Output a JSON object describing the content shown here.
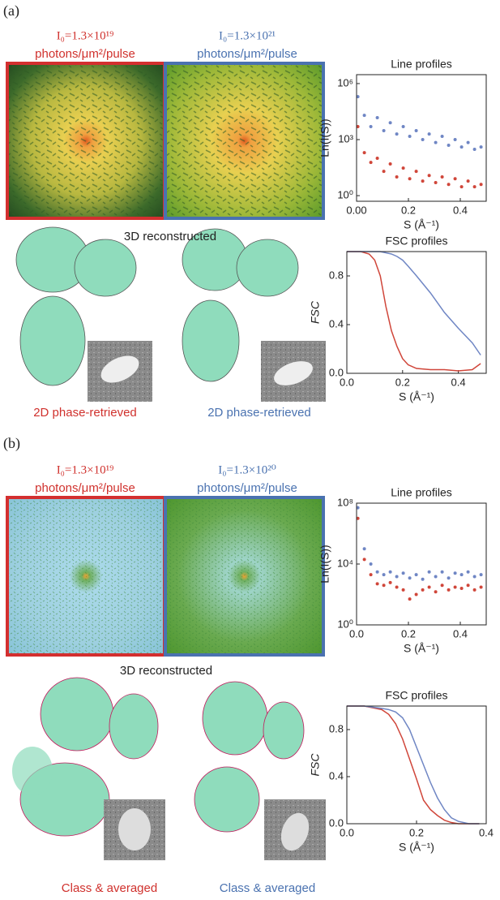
{
  "panels": [
    {
      "label": "(a)",
      "headings": [
        {
          "intensity": "I₀=1.3×10¹⁹",
          "unit": "photons/μm²/pulse"
        },
        {
          "intensity": "I₀=1.3×10²¹",
          "unit": "photons/μm²/pulse"
        }
      ],
      "reconstructed": "3D reconstructed",
      "captions": [
        "2D phase-retrieved",
        "2D phase-retrieved"
      ]
    },
    {
      "label": "(b)",
      "headings": [
        {
          "intensity": "I₀=1.3×10¹⁹",
          "unit": "photons/μm²/pulse"
        },
        {
          "intensity": "I₀=1.3×10²⁰",
          "unit": "photons/μm²/pulse"
        }
      ],
      "reconstructed": "3D reconstructed",
      "captions": [
        "Class & averaged",
        "Class & averaged"
      ]
    }
  ],
  "chart_data": [
    {
      "type": "scatter",
      "title": "Line profiles",
      "x_label": "S (Å⁻¹)",
      "y_label": "Ln(I(S))",
      "log_y": true,
      "xlim": [
        0,
        0.5
      ],
      "xticks": [
        {
          "value": 0,
          "label": "0.00"
        },
        0.2,
        0.4
      ],
      "ylim": [
        0.5,
        3000000
      ],
      "yticks": [
        {
          "value": 1,
          "label": "10⁰"
        },
        {
          "value": 1000,
          "label": "10³"
        },
        {
          "value": 1000000,
          "label": "10⁶"
        }
      ],
      "x": [
        0.005,
        0.03,
        0.055,
        0.08,
        0.105,
        0.13,
        0.155,
        0.18,
        0.205,
        0.23,
        0.255,
        0.28,
        0.305,
        0.33,
        0.355,
        0.38,
        0.405,
        0.43,
        0.455,
        0.48
      ],
      "series": [
        {
          "color": "#6f86c4",
          "values": [
            200000,
            20000,
            5000,
            15000,
            3000,
            8000,
            2000,
            5000,
            1500,
            3000,
            1000,
            2000,
            700,
            1500,
            500,
            1000,
            400,
            700,
            300,
            400
          ]
        },
        {
          "color": "#d0463a",
          "values": [
            5000,
            200,
            60,
            100,
            20,
            50,
            10,
            30,
            8,
            20,
            6,
            12,
            5,
            10,
            4,
            8,
            3,
            6,
            3,
            4
          ]
        }
      ]
    },
    {
      "type": "line",
      "title": "FSC profiles",
      "x_label": "S (Å⁻¹)",
      "y_label": "FSC",
      "xlim": [
        0,
        0.5
      ],
      "xticks": [
        {
          "value": 0,
          "label": "0.0"
        },
        0.2,
        0.4
      ],
      "ylim": [
        0,
        1
      ],
      "yticks": [
        {
          "value": 0,
          "label": "0.0"
        },
        0.4,
        0.8
      ],
      "x": [
        0,
        0.05,
        0.08,
        0.1,
        0.12,
        0.14,
        0.16,
        0.18,
        0.2,
        0.22,
        0.25,
        0.3,
        0.35,
        0.4,
        0.45,
        0.48
      ],
      "series": [
        {
          "color": "#d0463a",
          "values": [
            1,
            1,
            0.98,
            0.93,
            0.8,
            0.55,
            0.35,
            0.22,
            0.12,
            0.07,
            0.04,
            0.03,
            0.03,
            0.02,
            0.03,
            0.08
          ]
        },
        {
          "color": "#6f86c4",
          "values": [
            1,
            1,
            1,
            1,
            1,
            0.99,
            0.98,
            0.96,
            0.93,
            0.88,
            0.8,
            0.66,
            0.5,
            0.37,
            0.25,
            0.15
          ]
        }
      ]
    },
    {
      "type": "scatter",
      "title": "Line profiles",
      "x_label": "S (Å⁻¹)",
      "y_label": "Ln(I(S))",
      "log_y": true,
      "xlim": [
        0,
        0.5
      ],
      "xticks": [
        {
          "value": 0,
          "label": "0.0"
        },
        0.2,
        0.4
      ],
      "ylim": [
        1,
        100000000
      ],
      "yticks": [
        {
          "value": 1,
          "label": "10⁰"
        },
        {
          "value": 10000,
          "label": "10⁴"
        },
        {
          "value": 100000000,
          "label": "10⁸"
        }
      ],
      "x": [
        0.005,
        0.03,
        0.055,
        0.08,
        0.105,
        0.13,
        0.155,
        0.18,
        0.205,
        0.23,
        0.255,
        0.28,
        0.305,
        0.33,
        0.355,
        0.38,
        0.405,
        0.43,
        0.455,
        0.48
      ],
      "series": [
        {
          "color": "#6f86c4",
          "values": [
            50000000,
            100000,
            10000,
            3000,
            2000,
            3000,
            1500,
            2500,
            1200,
            2000,
            1000,
            3000,
            1500,
            3000,
            1200,
            2500,
            2000,
            3000,
            1500,
            2000
          ]
        },
        {
          "color": "#d0463a",
          "values": [
            10000000,
            20000,
            2000,
            500,
            400,
            600,
            300,
            200,
            50,
            100,
            200,
            300,
            150,
            400,
            200,
            300,
            250,
            400,
            200,
            300
          ]
        }
      ]
    },
    {
      "type": "line",
      "title": "FSC profiles",
      "x_label": "S (Å⁻¹)",
      "y_label": "FSC",
      "xlim": [
        0,
        0.4
      ],
      "xticks": [
        {
          "value": 0,
          "label": "0.0"
        },
        0.2,
        0.4
      ],
      "ylim": [
        0,
        1
      ],
      "yticks": [
        {
          "value": 0,
          "label": "0.0"
        },
        0.4,
        0.8
      ],
      "x": [
        0,
        0.05,
        0.1,
        0.12,
        0.14,
        0.16,
        0.18,
        0.2,
        0.22,
        0.24,
        0.26,
        0.28,
        0.3,
        0.32,
        0.35,
        0.38
      ],
      "series": [
        {
          "color": "#d0463a",
          "values": [
            1,
            1,
            0.97,
            0.93,
            0.85,
            0.72,
            0.55,
            0.38,
            0.2,
            0.12,
            0.07,
            0.03,
            0.01,
            0,
            0,
            0
          ]
        },
        {
          "color": "#6f86c4",
          "values": [
            1,
            1,
            0.98,
            0.97,
            0.95,
            0.9,
            0.8,
            0.65,
            0.5,
            0.35,
            0.22,
            0.12,
            0.05,
            0.02,
            0,
            0
          ]
        }
      ]
    }
  ]
}
